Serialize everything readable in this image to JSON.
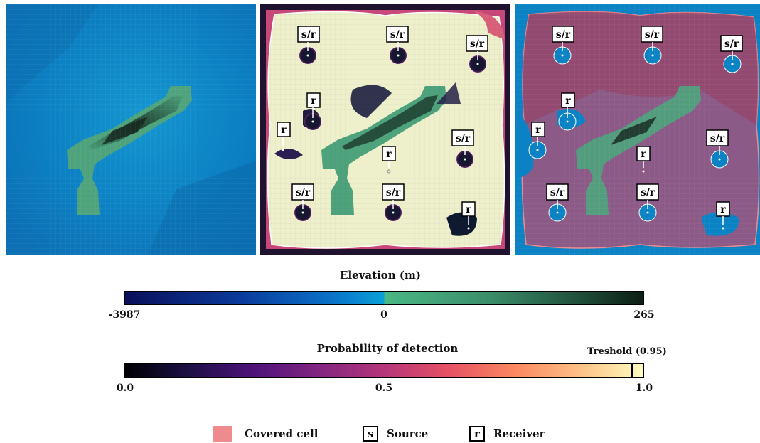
{
  "colorbars": {
    "elevation": {
      "title": "Elevation (m)",
      "ticks": [
        {
          "label": "-3987"
        },
        {
          "label": "0"
        },
        {
          "label": "265"
        }
      ]
    },
    "probability": {
      "title": "Probability of detection",
      "threshold_label": "Treshold (0.95)",
      "threshold_value": 0.95,
      "ticks": [
        {
          "label": "0.0"
        },
        {
          "label": "0.5"
        },
        {
          "label": "1.0"
        }
      ]
    }
  },
  "markers": {
    "source_receiver": "s/r",
    "receiver": "r"
  },
  "legend": {
    "covered_cell": "Covered cell",
    "source_symbol": "s",
    "source": "Source",
    "receiver_symbol": "r",
    "receiver": "Receiver"
  },
  "colors": {
    "ocean": "#0a7fbf",
    "land": "#4a9e7a",
    "detection_high": "#f2f1c8",
    "detection_low": "#1a1530",
    "covered": "#ef8a8f"
  }
}
